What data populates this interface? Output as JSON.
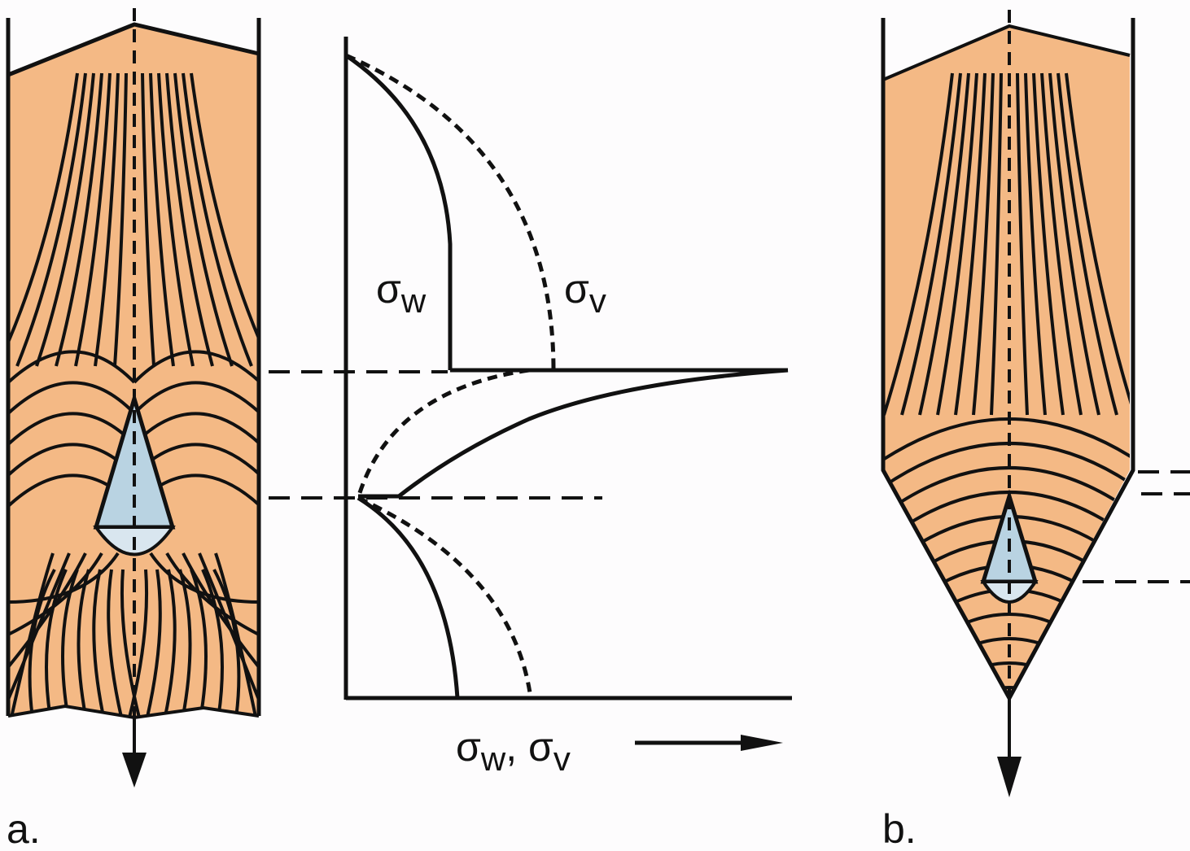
{
  "panel_a": {
    "label": "a."
  },
  "panel_b": {
    "label": "b."
  },
  "graph": {
    "wall_stress": {
      "symbol": "σ",
      "sub": "w"
    },
    "vertical_stress": {
      "symbol": "σ",
      "sub": "v"
    },
    "axis_label": {
      "parts": [
        {
          "text": "σ"
        },
        {
          "text": "w",
          "sub": true
        },
        {
          "text": ", σ"
        },
        {
          "text": "v",
          "sub": true
        }
      ]
    }
  }
}
